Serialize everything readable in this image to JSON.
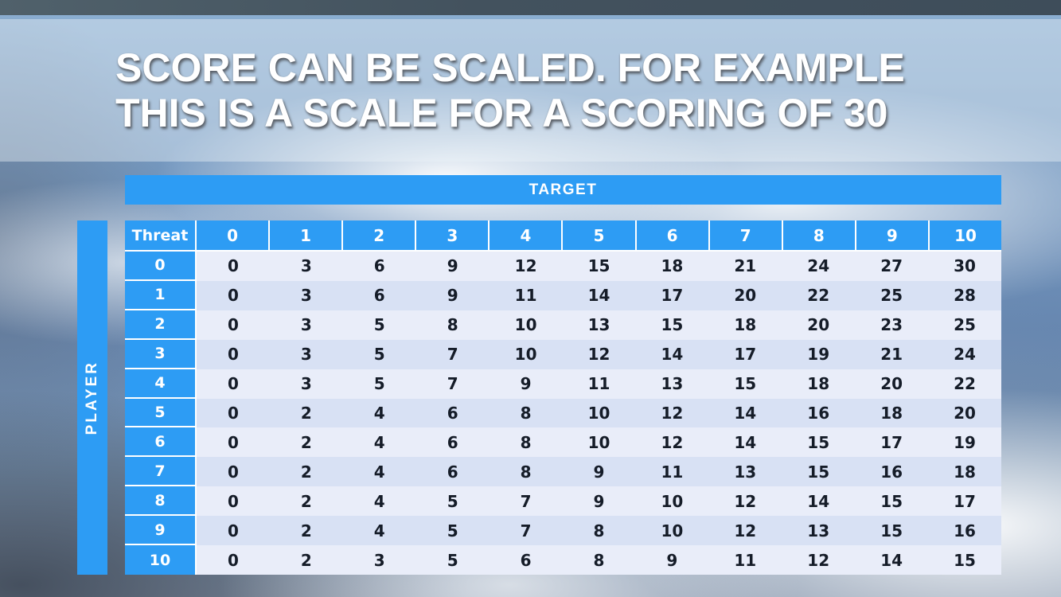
{
  "slide": {
    "title_line1": "SCORE CAN BE SCALED. FOR EXAMPLE",
    "title_line2": "THIS IS A SCALE FOR A SCORING OF 30"
  },
  "table": {
    "target_label": "TARGET",
    "player_label": "PLAYER",
    "corner_label": "Threat",
    "column_headers": [
      "0",
      "1",
      "2",
      "3",
      "4",
      "5",
      "6",
      "7",
      "8",
      "9",
      "10"
    ],
    "rows": [
      {
        "threat": "0",
        "values": [
          0,
          3,
          6,
          9,
          12,
          15,
          18,
          21,
          24,
          27,
          30
        ]
      },
      {
        "threat": "1",
        "values": [
          0,
          3,
          6,
          9,
          11,
          14,
          17,
          20,
          22,
          25,
          28
        ]
      },
      {
        "threat": "2",
        "values": [
          0,
          3,
          5,
          8,
          10,
          13,
          15,
          18,
          20,
          23,
          25
        ]
      },
      {
        "threat": "3",
        "values": [
          0,
          3,
          5,
          7,
          10,
          12,
          14,
          17,
          19,
          21,
          24
        ]
      },
      {
        "threat": "4",
        "values": [
          0,
          3,
          5,
          7,
          9,
          11,
          13,
          15,
          18,
          20,
          22
        ]
      },
      {
        "threat": "5",
        "values": [
          0,
          2,
          4,
          6,
          8,
          10,
          12,
          14,
          16,
          18,
          20
        ]
      },
      {
        "threat": "6",
        "values": [
          0,
          2,
          4,
          6,
          8,
          10,
          12,
          14,
          15,
          17,
          19
        ]
      },
      {
        "threat": "7",
        "values": [
          0,
          2,
          4,
          6,
          8,
          9,
          11,
          13,
          15,
          16,
          18
        ]
      },
      {
        "threat": "8",
        "values": [
          0,
          2,
          4,
          5,
          7,
          9,
          10,
          12,
          14,
          15,
          17
        ]
      },
      {
        "threat": "9",
        "values": [
          0,
          2,
          4,
          5,
          7,
          8,
          10,
          12,
          13,
          15,
          16
        ]
      },
      {
        "threat": "10",
        "values": [
          0,
          2,
          3,
          5,
          6,
          8,
          9,
          11,
          12,
          14,
          15
        ]
      }
    ]
  },
  "colors": {
    "header_blue": "#2D9CF4",
    "row_light": "#E9EDF9",
    "row_dark": "#D8E1F4",
    "cell_text": "#151C28",
    "top_bar": "#46555F",
    "title_text": "#FFFFFF"
  }
}
